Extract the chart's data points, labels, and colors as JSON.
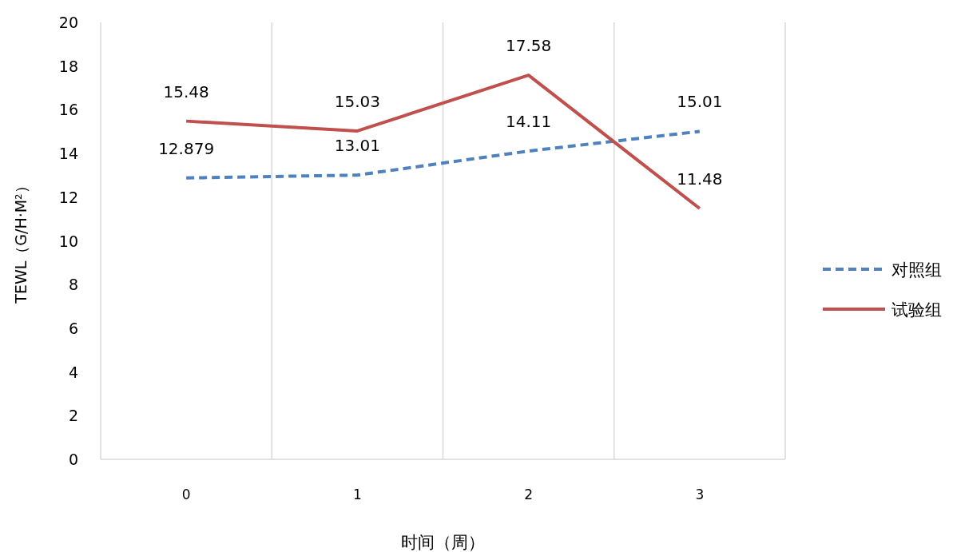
{
  "chart_data": {
    "type": "line",
    "xlabel": "时间（周）",
    "ylabel": "TEWL（G/H·M²）",
    "categories": [
      "0",
      "1",
      "2",
      "3"
    ],
    "series": [
      {
        "name": "对照组",
        "color": "#4f81bd",
        "values": [
          12.879,
          13.01,
          14.11,
          15.01
        ],
        "line_style": "dashed"
      },
      {
        "name": "试验组",
        "color": "#c0504d",
        "values": [
          15.48,
          15.03,
          17.58,
          11.48
        ],
        "line_style": "solid"
      }
    ],
    "ylim": [
      0,
      20
    ],
    "yticks": [
      0,
      2,
      4,
      6,
      8,
      10,
      12,
      14,
      16,
      18,
      20
    ],
    "grid": "x",
    "legend": "right",
    "data_labels": true
  }
}
